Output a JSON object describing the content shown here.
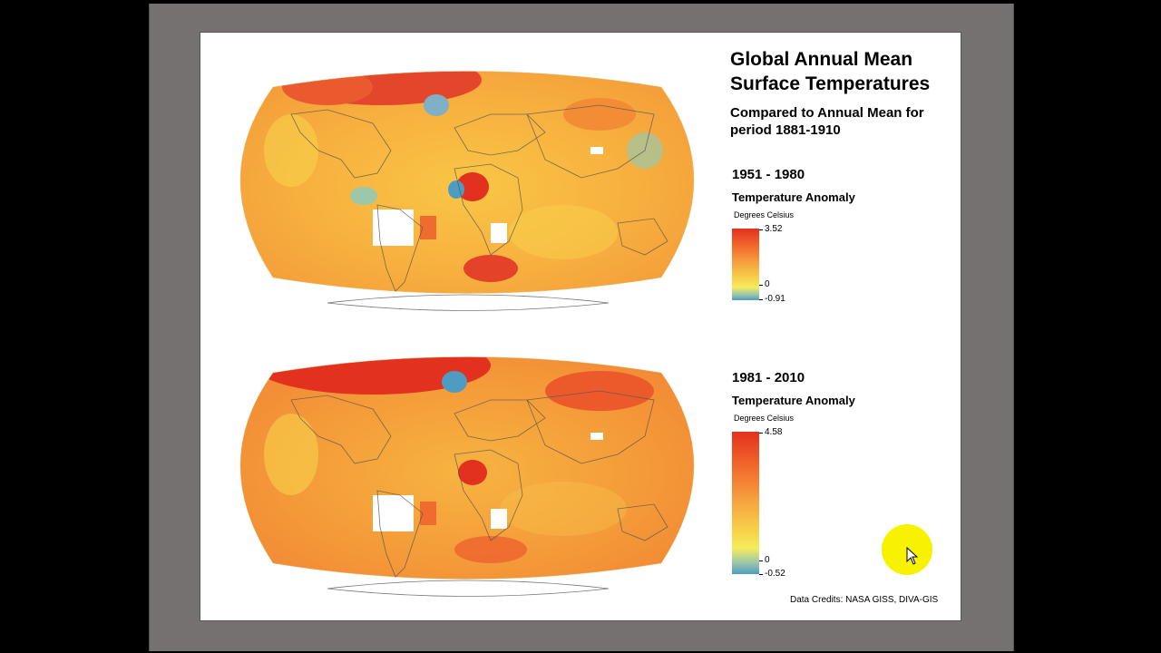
{
  "title": "Global Annual Mean Surface Temperatures",
  "subtitle": "Compared to Annual Mean for period 1881-1910",
  "maps": [
    {
      "period": "1951 - 1980",
      "legend_title": "Temperature Anomaly",
      "units": "Degrees Celsius",
      "max_label": "3.52",
      "zero_label": "0",
      "min_label": "-0.91",
      "max": 3.52,
      "min": -0.91
    },
    {
      "period": "1981 - 2010",
      "legend_title": "Temperature Anomaly",
      "units": "Degrees Celsius",
      "max_label": "4.58",
      "zero_label": "0",
      "min_label": "-0.52",
      "max": 4.58,
      "min": -0.52
    }
  ],
  "credits": "Data Credits: NASA GISS, DIVA-GIS",
  "colors": {
    "hot": "#e3311f",
    "warm": "#f26a2c",
    "mid": "#f6a640",
    "mild": "#f7d24b",
    "zero": "#f5ec5c",
    "cool": "#4f9cc3",
    "frame": "#767171"
  },
  "icons": {
    "cursor": "mouse-pointer-icon"
  }
}
